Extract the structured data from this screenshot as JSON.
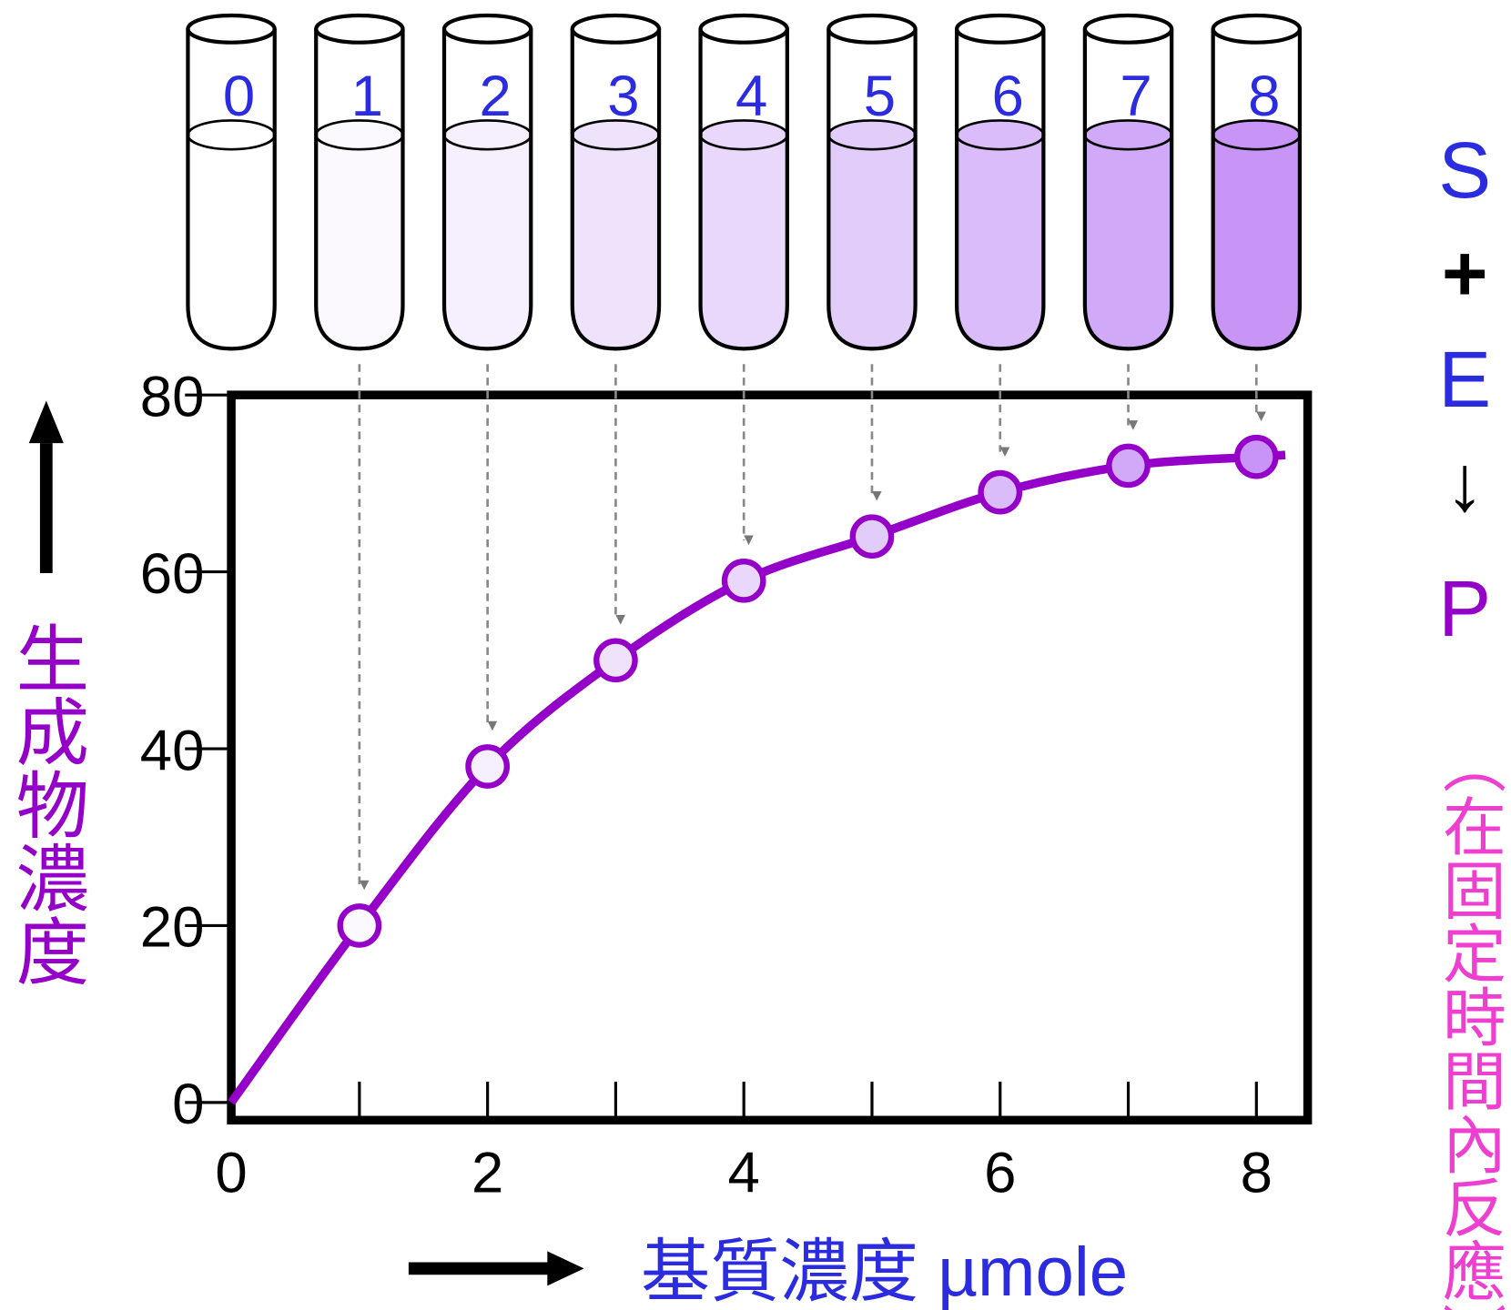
{
  "chart_data": {
    "type": "line",
    "x_label": "基質濃度 µmole",
    "y_label": "生成物濃度",
    "reaction": [
      "S",
      "+",
      "E",
      "↓",
      "P"
    ],
    "reaction_colors": [
      "#2b2be0",
      "#000000",
      "#2b2be0",
      "#000000",
      "#9400c8"
    ],
    "reaction_note": "（在固定時間內反應）",
    "tubes": [
      "0",
      "1",
      "2",
      "3",
      "4",
      "5",
      "6",
      "7",
      "8"
    ],
    "tube_colors": [
      "#ffffff",
      "#fbf8fe",
      "#f6effd",
      "#efe3fc",
      "#e9d8fb",
      "#e1ccfa",
      "#d9bcf9",
      "#d0aaf8",
      "#c895f7"
    ],
    "x": [
      0,
      1,
      2,
      3,
      4,
      5,
      6,
      7,
      8
    ],
    "series": [
      {
        "name": "生成物",
        "color": "#9400c8",
        "values": [
          0,
          20,
          38,
          50,
          59,
          64,
          69,
          72,
          73
        ]
      }
    ],
    "xlim": [
      0,
      8.4
    ],
    "ylim": [
      -2,
      80
    ],
    "xticks": [
      0,
      2,
      4,
      6,
      8
    ],
    "xminor_ticks": [
      1,
      3,
      5,
      7
    ],
    "yticks": [
      0,
      20,
      40,
      60,
      80
    ]
  }
}
